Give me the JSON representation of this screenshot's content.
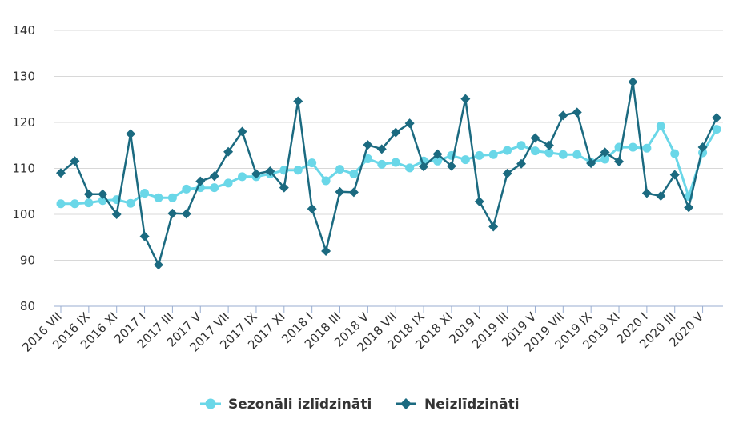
{
  "chart_data": {
    "type": "line",
    "ylim": [
      80,
      140
    ],
    "yticks": [
      80,
      90,
      100,
      110,
      120,
      130,
      140
    ],
    "xtick_labels": [
      "2016 VII",
      "2016 IX",
      "2016 XI",
      "2017 I",
      "2017 III",
      "2017 V",
      "2017 VII",
      "2017 IX",
      "2017 XI",
      "2018 I",
      "2018 III",
      "2018 V",
      "2018 VII",
      "2018 IX",
      "2018 XI",
      "2019 I",
      "2019 III",
      "2019 V",
      "2019 VII",
      "2019 IX",
      "2019 XI",
      "2020 I",
      "2020 III",
      "2020 V"
    ],
    "x": [
      "2016 VII",
      "2016 VIII",
      "2016 IX",
      "2016 X",
      "2016 XI",
      "2016 XII",
      "2017 I",
      "2017 II",
      "2017 III",
      "2017 IV",
      "2017 V",
      "2017 VI",
      "2017 VII",
      "2017 VIII",
      "2017 IX",
      "2017 X",
      "2017 XI",
      "2017 XII",
      "2018 I",
      "2018 II",
      "2018 III",
      "2018 IV",
      "2018 V",
      "2018 VI",
      "2018 VII",
      "2018 VIII",
      "2018 IX",
      "2018 X",
      "2018 XI",
      "2018 XII",
      "2019 I",
      "2019 II",
      "2019 III",
      "2019 IV",
      "2019 V",
      "2019 VI",
      "2019 VII",
      "2019 VIII",
      "2019 IX",
      "2019 X",
      "2019 XI",
      "2019 XII",
      "2020 I",
      "2020 II",
      "2020 III",
      "2020 IV",
      "2020 V",
      "2020 VI"
    ],
    "series": [
      {
        "name": "Sezonāli izlīdzināti",
        "color": "#6ad7e8",
        "marker": "circle",
        "values": [
          102.3,
          102.3,
          102.5,
          103.0,
          103.2,
          102.4,
          104.6,
          103.6,
          103.6,
          105.5,
          105.8,
          105.8,
          106.8,
          108.2,
          108.2,
          108.8,
          109.6,
          109.6,
          111.2,
          107.3,
          109.8,
          108.8,
          112.1,
          110.9,
          111.3,
          110.1,
          111.6,
          111.6,
          112.8,
          111.9,
          112.8,
          113.0,
          113.9,
          115.0,
          113.8,
          113.4,
          113.0,
          113.0,
          111.3,
          112.0,
          114.6,
          114.6,
          114.4,
          119.2,
          113.2,
          103.9,
          113.4,
          118.5
        ]
      },
      {
        "name": "Neizlīdzināti",
        "color": "#1b6a80",
        "marker": "diamond",
        "values": [
          109.0,
          111.6,
          104.4,
          104.4,
          100.0,
          117.5,
          95.2,
          89.0,
          100.2,
          100.1,
          107.2,
          108.3,
          113.6,
          118.0,
          108.8,
          109.4,
          105.8,
          124.6,
          101.2,
          92.0,
          104.9,
          104.8,
          115.1,
          114.2,
          117.8,
          119.8,
          110.4,
          113.1,
          110.5,
          125.1,
          102.8,
          97.3,
          108.9,
          111.0,
          116.6,
          115.0,
          121.5,
          122.2,
          111.1,
          113.5,
          111.5,
          128.8,
          104.6,
          104.0,
          108.6,
          101.5,
          114.6,
          121.0
        ]
      }
    ],
    "legend_position": "bottom-center",
    "grid": true
  }
}
